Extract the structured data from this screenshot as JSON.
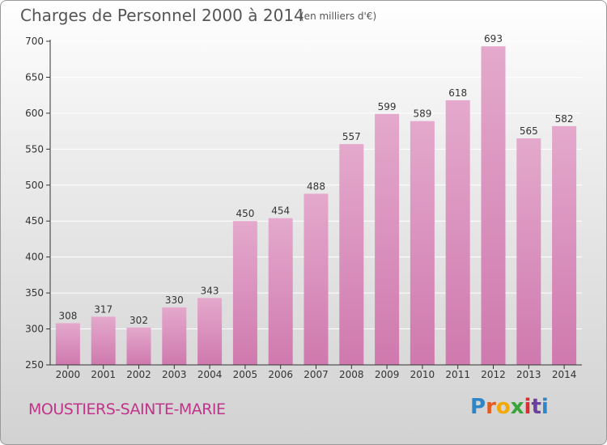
{
  "header": {
    "title": "Charges de Personnel 2000 à 2014",
    "subtitle": "(en milliers d'€)"
  },
  "footer": {
    "town": "MOUSTIERS-SAINTE-MARIE",
    "logo_letters": [
      "P",
      "r",
      "o",
      "x",
      "i",
      "t",
      "i"
    ],
    "logo_colors": [
      "#2e86c9",
      "#e25c1f",
      "#f2a900",
      "#3aa537",
      "#d62f2f",
      "#6b3fa0",
      "#2e86c9"
    ]
  },
  "colors": {
    "bar": "#cf79ae",
    "bar_light": "#e4a9cc",
    "axis": "#333333",
    "grid": "#ffffff"
  },
  "chart_data": {
    "type": "bar",
    "categories": [
      "2000",
      "2001",
      "2002",
      "2003",
      "2004",
      "2005",
      "2006",
      "2007",
      "2008",
      "2009",
      "2010",
      "2011",
      "2012",
      "2013",
      "2014"
    ],
    "values": [
      308,
      317,
      302,
      330,
      343,
      450,
      454,
      488,
      557,
      599,
      589,
      618,
      693,
      565,
      582
    ],
    "yticks": [
      250,
      300,
      350,
      400,
      450,
      500,
      550,
      600,
      650,
      700
    ],
    "ylim": [
      250,
      700
    ],
    "grid": true,
    "legend": "none"
  }
}
